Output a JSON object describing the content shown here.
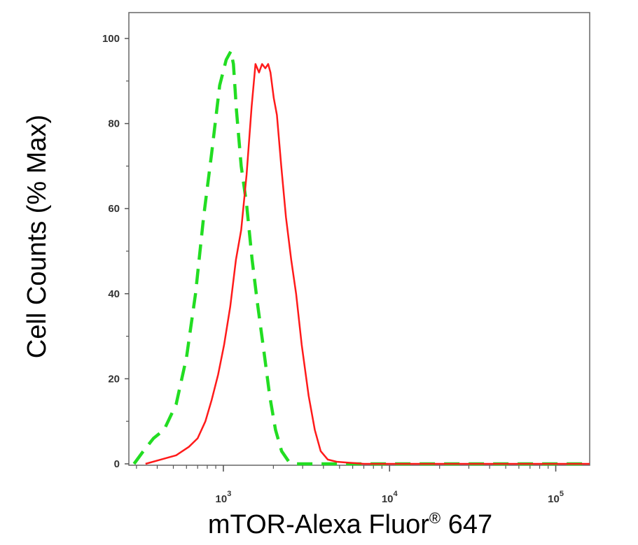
{
  "chart_data": {
    "type": "line",
    "title": "",
    "xlabel": "mTOR-Alexa Fluor",
    "xlabel_mark": "®",
    "xlabel_suffix": " 647",
    "ylabel": "Cell Counts (% Max)",
    "x_scale": "log",
    "xlim": [
      270,
      160000
    ],
    "ylim": [
      0,
      100
    ],
    "grid": false,
    "legend": "none",
    "y_ticks": [
      0,
      20,
      40,
      60,
      80,
      100
    ],
    "y_tick_labels": [
      "0",
      "20",
      "40",
      "60",
      "80",
      "100"
    ],
    "x_ticks": [
      {
        "value": 1000,
        "base": "10",
        "exp": "3"
      },
      {
        "value": 10000,
        "base": "10",
        "exp": "4"
      },
      {
        "value": 100000,
        "base": "10",
        "exp": "5"
      }
    ],
    "series": [
      {
        "color": "#ff1a1a",
        "style": "solid",
        "x": [
          340,
          420,
          520,
          620,
          700,
          780,
          850,
          930,
          1010,
          1100,
          1190,
          1280,
          1380,
          1480,
          1560,
          1640,
          1710,
          1790,
          1860,
          1920,
          2010,
          2100,
          2230,
          2380,
          2560,
          2740,
          2960,
          3260,
          3550,
          3850,
          4250,
          4800,
          5600,
          7000,
          10000,
          30000,
          100000,
          160000
        ],
        "y": [
          0,
          1,
          2,
          4,
          6,
          10,
          15,
          21,
          28,
          37,
          48,
          55,
          68,
          84,
          94,
          92,
          94,
          93,
          94,
          92,
          86,
          82,
          70,
          58,
          48,
          40,
          28,
          16,
          8,
          3,
          1,
          0.5,
          0.3,
          0,
          0,
          0,
          0,
          0
        ]
      },
      {
        "color": "#22dd22",
        "style": "dashed",
        "x": [
          290,
          330,
          380,
          440,
          520,
          600,
          680,
          760,
          850,
          950,
          1040,
          1110,
          1150,
          1200,
          1280,
          1380,
          1490,
          1600,
          1760,
          1900,
          2060,
          2240,
          2480,
          2750,
          3000,
          3500,
          5000,
          10000,
          50000,
          160000
        ],
        "y": [
          0,
          3,
          6,
          8,
          14,
          25,
          40,
          58,
          73,
          89,
          95,
          97,
          94,
          83,
          70,
          61,
          48,
          38,
          26,
          16,
          8,
          3,
          0.5,
          0,
          0,
          0,
          0,
          0,
          0,
          0
        ]
      }
    ]
  }
}
